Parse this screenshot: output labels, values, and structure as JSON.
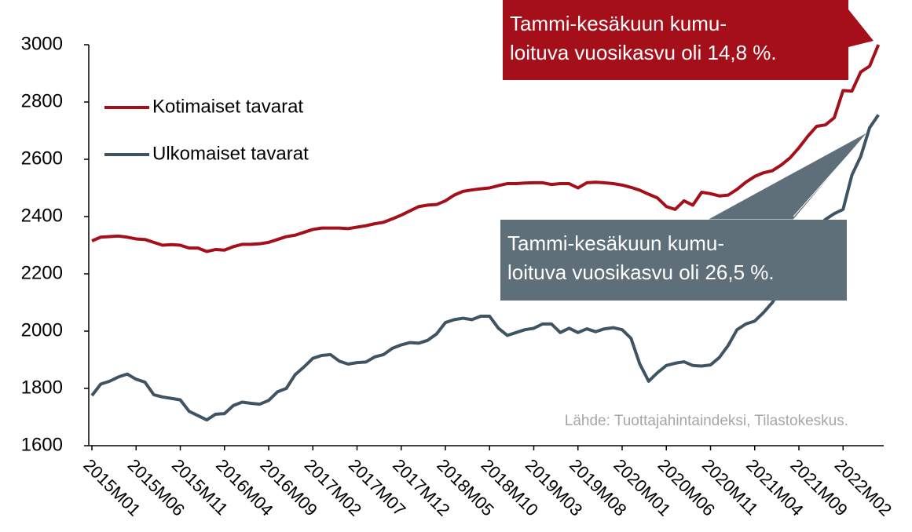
{
  "chart_data": {
    "type": "line",
    "categories": [
      "2015M01",
      null,
      null,
      null,
      null,
      "2015M06",
      null,
      null,
      null,
      null,
      "2015M11",
      null,
      null,
      null,
      null,
      "2016M04",
      null,
      null,
      null,
      null,
      "2016M09",
      null,
      null,
      null,
      null,
      "2017M02",
      null,
      null,
      null,
      null,
      "2017M07",
      null,
      null,
      null,
      null,
      "2017M12",
      null,
      null,
      null,
      null,
      "2018M05",
      null,
      null,
      null,
      null,
      "2018M10",
      null,
      null,
      null,
      null,
      "2019M03",
      null,
      null,
      null,
      null,
      "2019M08",
      null,
      null,
      null,
      null,
      "2020M01",
      null,
      null,
      null,
      null,
      "2020M06",
      null,
      null,
      null,
      null,
      "2020M11",
      null,
      null,
      null,
      null,
      "2021M04",
      null,
      null,
      null,
      null,
      "2021M09",
      null,
      null,
      null,
      null,
      "2022M02",
      null,
      null,
      null,
      null
    ],
    "series": [
      {
        "name": "Kotimaiset tavarat",
        "color": "#a50f1a",
        "values": [
          2315,
          2328,
          2330,
          2332,
          2328,
          2322,
          2320,
          2310,
          2300,
          2302,
          2300,
          2290,
          2290,
          2278,
          2285,
          2283,
          2295,
          2303,
          2303,
          2305,
          2310,
          2320,
          2330,
          2335,
          2345,
          2355,
          2360,
          2360,
          2360,
          2358,
          2363,
          2368,
          2375,
          2380,
          2392,
          2405,
          2420,
          2435,
          2440,
          2442,
          2455,
          2475,
          2488,
          2493,
          2497,
          2500,
          2508,
          2515,
          2515,
          2517,
          2518,
          2518,
          2512,
          2515,
          2515,
          2500,
          2518,
          2520,
          2518,
          2515,
          2510,
          2502,
          2492,
          2478,
          2465,
          2435,
          2425,
          2455,
          2440,
          2485,
          2480,
          2472,
          2475,
          2495,
          2520,
          2540,
          2553,
          2560,
          2580,
          2605,
          2640,
          2680,
          2715,
          2720,
          2745,
          2840,
          2838,
          2905,
          2925,
          3000
        ]
      },
      {
        "name": "Ulkomaiset tavarat",
        "color": "#3f5463",
        "values": [
          1775,
          1815,
          1825,
          1840,
          1850,
          1832,
          1822,
          1778,
          1770,
          1765,
          1760,
          1720,
          1705,
          1690,
          1710,
          1712,
          1740,
          1752,
          1748,
          1745,
          1758,
          1788,
          1800,
          1848,
          1875,
          1905,
          1915,
          1918,
          1895,
          1885,
          1890,
          1892,
          1910,
          1918,
          1940,
          1952,
          1960,
          1958,
          1968,
          1990,
          2030,
          2040,
          2045,
          2040,
          2052,
          2052,
          2010,
          1985,
          1995,
          2005,
          2010,
          2025,
          2025,
          1995,
          2010,
          1995,
          2008,
          1998,
          2008,
          2012,
          2005,
          1975,
          1885,
          1825,
          1855,
          1880,
          1888,
          1893,
          1880,
          1878,
          1882,
          1908,
          1950,
          2005,
          2025,
          2035,
          2065,
          2100,
          2150,
          2210,
          2260,
          2310,
          2360,
          2390,
          2410,
          2425,
          2545,
          2610,
          2710,
          2755
        ]
      }
    ],
    "ylim": [
      1600,
      3000
    ],
    "yticks": [
      1600,
      1800,
      2000,
      2200,
      2400,
      2600,
      2800,
      3000
    ],
    "annotations": [
      {
        "lines": [
          "Tammi-kesäkuun kumu-",
          "loituva vuosikasvu oli 14,8 %."
        ],
        "color": "#a50f1a"
      },
      {
        "lines": [
          "Tammi-kesäkuun kumu-",
          "loituva vuosikasvu oli 26,5 %."
        ],
        "color": "#5f6f7a"
      }
    ],
    "source": "Lähde: Tuottajahintaindeksi, Tilastokeskus."
  }
}
